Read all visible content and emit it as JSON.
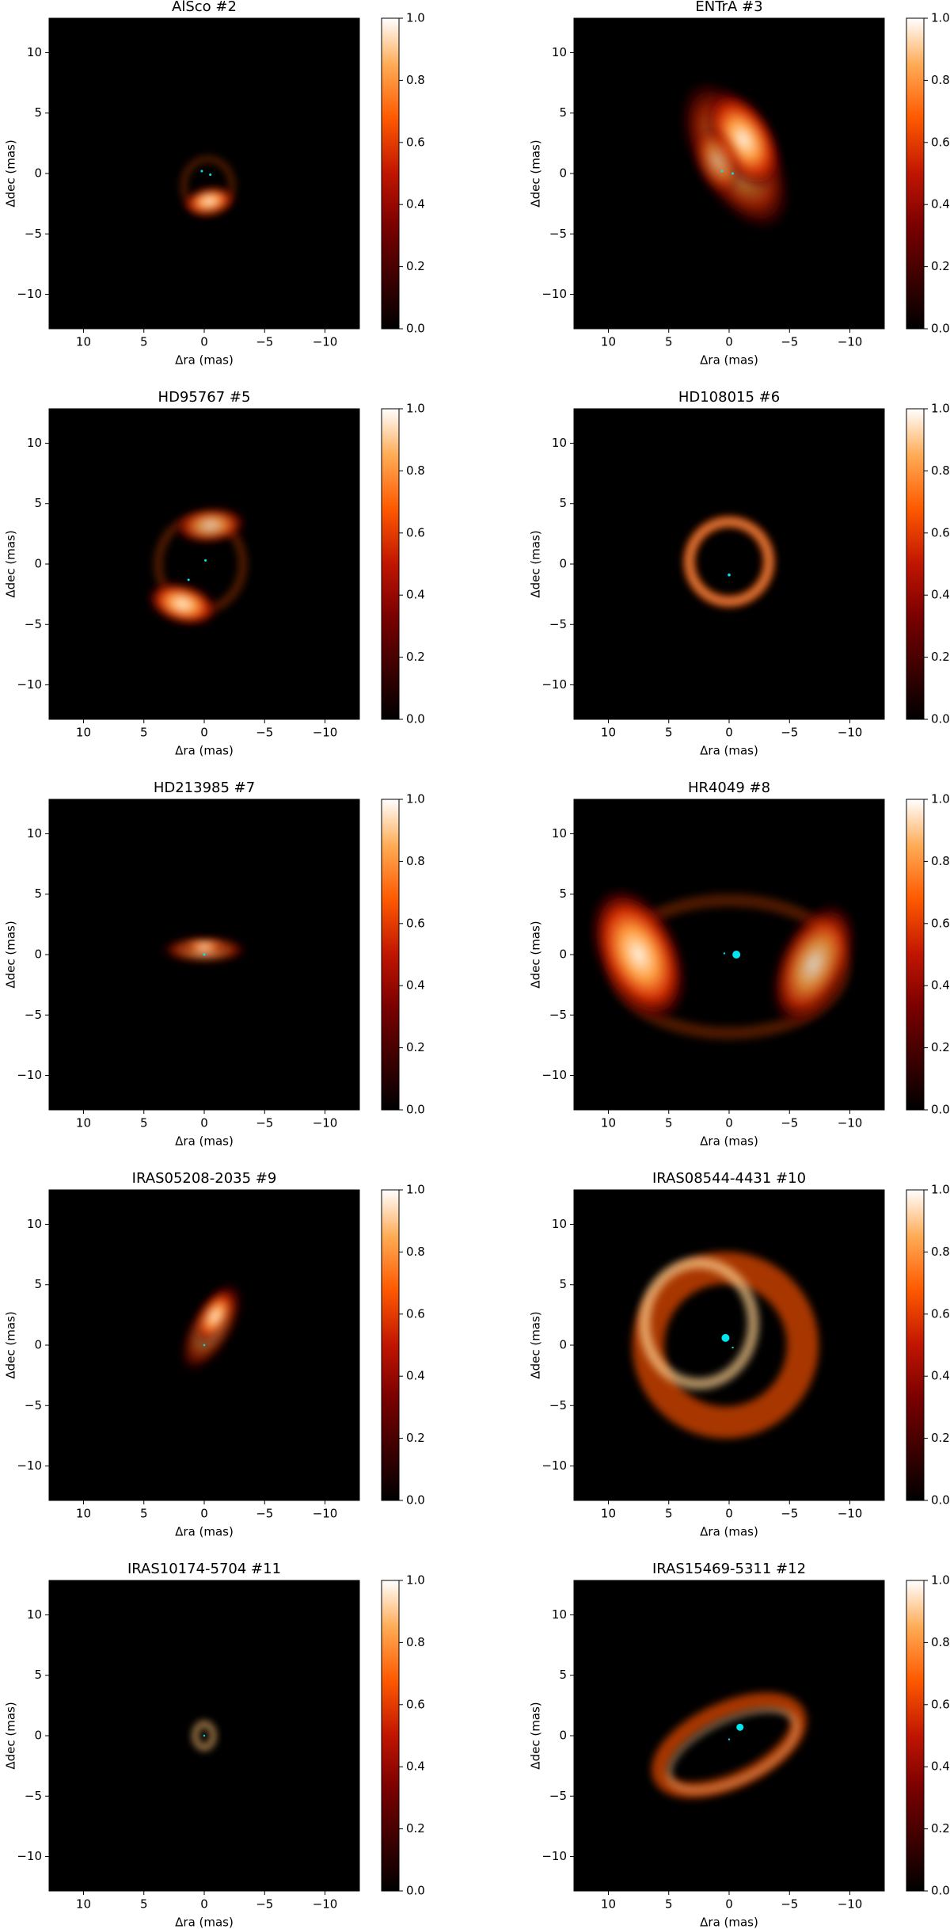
{
  "chart_data": [
    {
      "type": "image",
      "title": "AlSco #2",
      "xlabel": "Δra (mas)",
      "ylabel": "Δdec (mas)",
      "xlim": [
        12.85,
        -12.85
      ],
      "ylim": [
        -12.85,
        12.85
      ],
      "xticks": [
        10,
        5,
        0,
        {
          "value": -5,
          "label": "−5"
        },
        {
          "value": -10,
          "label": "−10"
        }
      ],
      "yticks": [
        {
          "value": -10,
          "label": "−10"
        },
        {
          "value": -5,
          "label": "−5"
        },
        0,
        5,
        10
      ],
      "clim": [
        0,
        1
      ],
      "cticks": [
        {
          "value": 0,
          "label": "0.0"
        },
        {
          "value": 0.2,
          "label": "0.2"
        },
        {
          "value": 0.4,
          "label": "0.4"
        },
        {
          "value": 0.6,
          "label": "0.6"
        },
        {
          "value": 0.8,
          "label": "0.8"
        },
        {
          "value": 1,
          "label": "1.0"
        }
      ]
    },
    {
      "type": "image",
      "title": "ENTrA #3",
      "xlabel": "Δra (mas)",
      "ylabel": "Δdec (mas)",
      "xlim": [
        12.85,
        -12.85
      ],
      "ylim": [
        -12.85,
        12.85
      ],
      "xticks": [
        10,
        5,
        0,
        {
          "value": -5,
          "label": "−5"
        },
        {
          "value": -10,
          "label": "−10"
        }
      ],
      "yticks": [
        {
          "value": -10,
          "label": "−10"
        },
        {
          "value": -5,
          "label": "−5"
        },
        0,
        5,
        10
      ],
      "clim": [
        0,
        1
      ],
      "cticks": [
        {
          "value": 0,
          "label": "0.0"
        },
        {
          "value": 0.2,
          "label": "0.2"
        },
        {
          "value": 0.4,
          "label": "0.4"
        },
        {
          "value": 0.6,
          "label": "0.6"
        },
        {
          "value": 0.8,
          "label": "0.8"
        },
        {
          "value": 1,
          "label": "1.0"
        }
      ]
    },
    {
      "type": "image",
      "title": "HD95767 #5",
      "xlabel": "Δra (mas)",
      "ylabel": "Δdec (mas)",
      "xlim": [
        12.85,
        -12.85
      ],
      "ylim": [
        -12.85,
        12.85
      ],
      "xticks": [
        10,
        5,
        0,
        {
          "value": -5,
          "label": "−5"
        },
        {
          "value": -10,
          "label": "−10"
        }
      ],
      "yticks": [
        {
          "value": -10,
          "label": "−10"
        },
        {
          "value": -5,
          "label": "−5"
        },
        0,
        5,
        10
      ],
      "clim": [
        0,
        1
      ],
      "cticks": [
        {
          "value": 0,
          "label": "0.0"
        },
        {
          "value": 0.2,
          "label": "0.2"
        },
        {
          "value": 0.4,
          "label": "0.4"
        },
        {
          "value": 0.6,
          "label": "0.6"
        },
        {
          "value": 0.8,
          "label": "0.8"
        },
        {
          "value": 1,
          "label": "1.0"
        }
      ]
    },
    {
      "type": "image",
      "title": "HD108015 #6",
      "xlabel": "Δra (mas)",
      "ylabel": "Δdec (mas)",
      "xlim": [
        12.85,
        -12.85
      ],
      "ylim": [
        -12.85,
        12.85
      ],
      "xticks": [
        10,
        5,
        0,
        {
          "value": -5,
          "label": "−5"
        },
        {
          "value": -10,
          "label": "−10"
        }
      ],
      "yticks": [
        {
          "value": -10,
          "label": "−10"
        },
        {
          "value": -5,
          "label": "−5"
        },
        0,
        5,
        10
      ],
      "clim": [
        0,
        1
      ],
      "cticks": [
        {
          "value": 0,
          "label": "0.0"
        },
        {
          "value": 0.2,
          "label": "0.2"
        },
        {
          "value": 0.4,
          "label": "0.4"
        },
        {
          "value": 0.6,
          "label": "0.6"
        },
        {
          "value": 0.8,
          "label": "0.8"
        },
        {
          "value": 1,
          "label": "1.0"
        }
      ]
    },
    {
      "type": "image",
      "title": "HD213985 #7",
      "xlabel": "Δra (mas)",
      "ylabel": "Δdec (mas)",
      "xlim": [
        12.85,
        -12.85
      ],
      "ylim": [
        -12.85,
        12.85
      ],
      "xticks": [
        10,
        5,
        0,
        {
          "value": -5,
          "label": "−5"
        },
        {
          "value": -10,
          "label": "−10"
        }
      ],
      "yticks": [
        {
          "value": -10,
          "label": "−10"
        },
        {
          "value": -5,
          "label": "−5"
        },
        0,
        5,
        10
      ],
      "clim": [
        0,
        1
      ],
      "cticks": [
        {
          "value": 0,
          "label": "0.0"
        },
        {
          "value": 0.2,
          "label": "0.2"
        },
        {
          "value": 0.4,
          "label": "0.4"
        },
        {
          "value": 0.6,
          "label": "0.6"
        },
        {
          "value": 0.8,
          "label": "0.8"
        },
        {
          "value": 1,
          "label": "1.0"
        }
      ]
    },
    {
      "type": "image",
      "title": "HR4049 #8",
      "xlabel": "Δra (mas)",
      "ylabel": "Δdec (mas)",
      "xlim": [
        12.85,
        -12.85
      ],
      "ylim": [
        -12.85,
        12.85
      ],
      "xticks": [
        10,
        5,
        0,
        {
          "value": -5,
          "label": "−5"
        },
        {
          "value": -10,
          "label": "−10"
        }
      ],
      "yticks": [
        {
          "value": -10,
          "label": "−10"
        },
        {
          "value": -5,
          "label": "−5"
        },
        0,
        5,
        10
      ],
      "clim": [
        0,
        1
      ],
      "cticks": [
        {
          "value": 0,
          "label": "0.0"
        },
        {
          "value": 0.2,
          "label": "0.2"
        },
        {
          "value": 0.4,
          "label": "0.4"
        },
        {
          "value": 0.6,
          "label": "0.6"
        },
        {
          "value": 0.8,
          "label": "0.8"
        },
        {
          "value": 1,
          "label": "1.0"
        }
      ]
    },
    {
      "type": "image",
      "title": "IRAS05208-2035 #9",
      "xlabel": "Δra (mas)",
      "ylabel": "Δdec (mas)",
      "xlim": [
        12.85,
        -12.85
      ],
      "ylim": [
        -12.85,
        12.85
      ],
      "xticks": [
        10,
        5,
        0,
        {
          "value": -5,
          "label": "−5"
        },
        {
          "value": -10,
          "label": "−10"
        }
      ],
      "yticks": [
        {
          "value": -10,
          "label": "−10"
        },
        {
          "value": -5,
          "label": "−5"
        },
        0,
        5,
        10
      ],
      "clim": [
        0,
        1
      ],
      "cticks": [
        {
          "value": 0,
          "label": "0.0"
        },
        {
          "value": 0.2,
          "label": "0.2"
        },
        {
          "value": 0.4,
          "label": "0.4"
        },
        {
          "value": 0.6,
          "label": "0.6"
        },
        {
          "value": 0.8,
          "label": "0.8"
        },
        {
          "value": 1,
          "label": "1.0"
        }
      ]
    },
    {
      "type": "image",
      "title": "IRAS08544-4431 #10",
      "xlabel": "Δra (mas)",
      "ylabel": "Δdec (mas)",
      "xlim": [
        12.85,
        -12.85
      ],
      "ylim": [
        -12.85,
        12.85
      ],
      "xticks": [
        10,
        5,
        0,
        {
          "value": -5,
          "label": "−5"
        },
        {
          "value": -10,
          "label": "−10"
        }
      ],
      "yticks": [
        {
          "value": -10,
          "label": "−10"
        },
        {
          "value": -5,
          "label": "−5"
        },
        0,
        5,
        10
      ],
      "clim": [
        0,
        1
      ],
      "cticks": [
        {
          "value": 0,
          "label": "0.0"
        },
        {
          "value": 0.2,
          "label": "0.2"
        },
        {
          "value": 0.4,
          "label": "0.4"
        },
        {
          "value": 0.6,
          "label": "0.6"
        },
        {
          "value": 0.8,
          "label": "0.8"
        },
        {
          "value": 1,
          "label": "1.0"
        }
      ]
    },
    {
      "type": "image",
      "title": "IRAS10174-5704 #11",
      "xlabel": "Δra (mas)",
      "ylabel": "Δdec (mas)",
      "xlim": [
        12.85,
        -12.85
      ],
      "ylim": [
        -12.85,
        12.85
      ],
      "xticks": [
        10,
        5,
        0,
        {
          "value": -5,
          "label": "−5"
        },
        {
          "value": -10,
          "label": "−10"
        }
      ],
      "yticks": [
        {
          "value": -10,
          "label": "−10"
        },
        {
          "value": -5,
          "label": "−5"
        },
        0,
        5,
        10
      ],
      "clim": [
        0,
        1
      ],
      "cticks": [
        {
          "value": 0,
          "label": "0.0"
        },
        {
          "value": 0.2,
          "label": "0.2"
        },
        {
          "value": 0.4,
          "label": "0.4"
        },
        {
          "value": 0.6,
          "label": "0.6"
        },
        {
          "value": 0.8,
          "label": "0.8"
        },
        {
          "value": 1,
          "label": "1.0"
        }
      ]
    },
    {
      "type": "image",
      "title": "IRAS15469-5311 #12",
      "xlabel": "Δra (mas)",
      "ylabel": "Δdec (mas)",
      "xlim": [
        12.85,
        -12.85
      ],
      "ylim": [
        -12.85,
        12.85
      ],
      "xticks": [
        10,
        5,
        0,
        {
          "value": -5,
          "label": "−5"
        },
        {
          "value": -10,
          "label": "−10"
        }
      ],
      "yticks": [
        {
          "value": -10,
          "label": "−10"
        },
        {
          "value": -5,
          "label": "−5"
        },
        0,
        5,
        10
      ],
      "clim": [
        0,
        1
      ],
      "cticks": [
        {
          "value": 0,
          "label": "0.0"
        },
        {
          "value": 0.2,
          "label": "0.2"
        },
        {
          "value": 0.4,
          "label": "0.4"
        },
        {
          "value": 0.6,
          "label": "0.6"
        },
        {
          "value": 0.8,
          "label": "0.8"
        },
        {
          "value": 1,
          "label": "1.0"
        }
      ]
    }
  ]
}
